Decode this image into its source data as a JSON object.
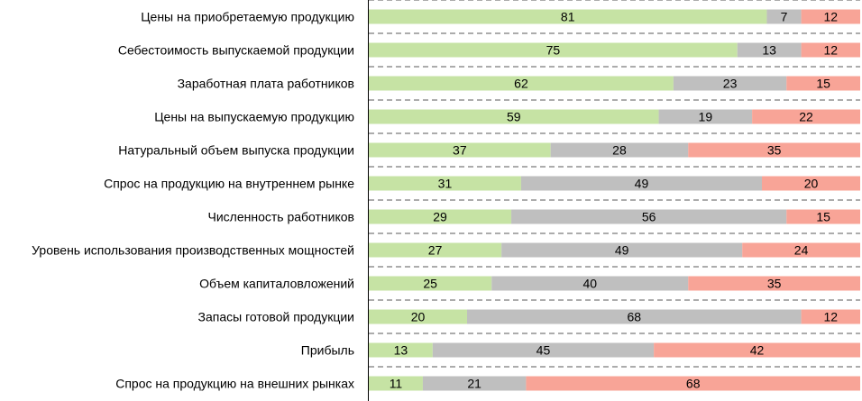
{
  "chart_data": {
    "type": "bar",
    "orientation": "horizontal",
    "stacked": true,
    "percent_stacked": true,
    "categories": [
      "Цены на приобретаемую продукцию",
      "Себестоимость выпускаемой продукции",
      "Заработная плата работников",
      "Цены на выпускаемую продукцию",
      "Натуральный объем выпуска продукции",
      "Спрос на продукцию на внутреннем рынке",
      "Численность работников",
      "Уровень использования производственных мощностей",
      "Объем капиталовложений",
      "Запасы готовой продукции",
      "Прибыль",
      "Спрос на продукцию на внешних рынках"
    ],
    "series": [
      {
        "color": "#c6e3a4",
        "values": [
          81,
          75,
          62,
          59,
          37,
          31,
          29,
          27,
          25,
          20,
          13,
          11
        ]
      },
      {
        "color": "#bfbfbf",
        "values": [
          7,
          13,
          23,
          19,
          28,
          49,
          56,
          49,
          40,
          68,
          45,
          21
        ]
      },
      {
        "color": "#f8a497",
        "values": [
          12,
          12,
          15,
          22,
          35,
          20,
          15,
          24,
          35,
          12,
          42,
          68
        ]
      }
    ],
    "xlim": [
      0,
      100
    ],
    "legend": "none",
    "grid": "dashed horizontal separators"
  }
}
